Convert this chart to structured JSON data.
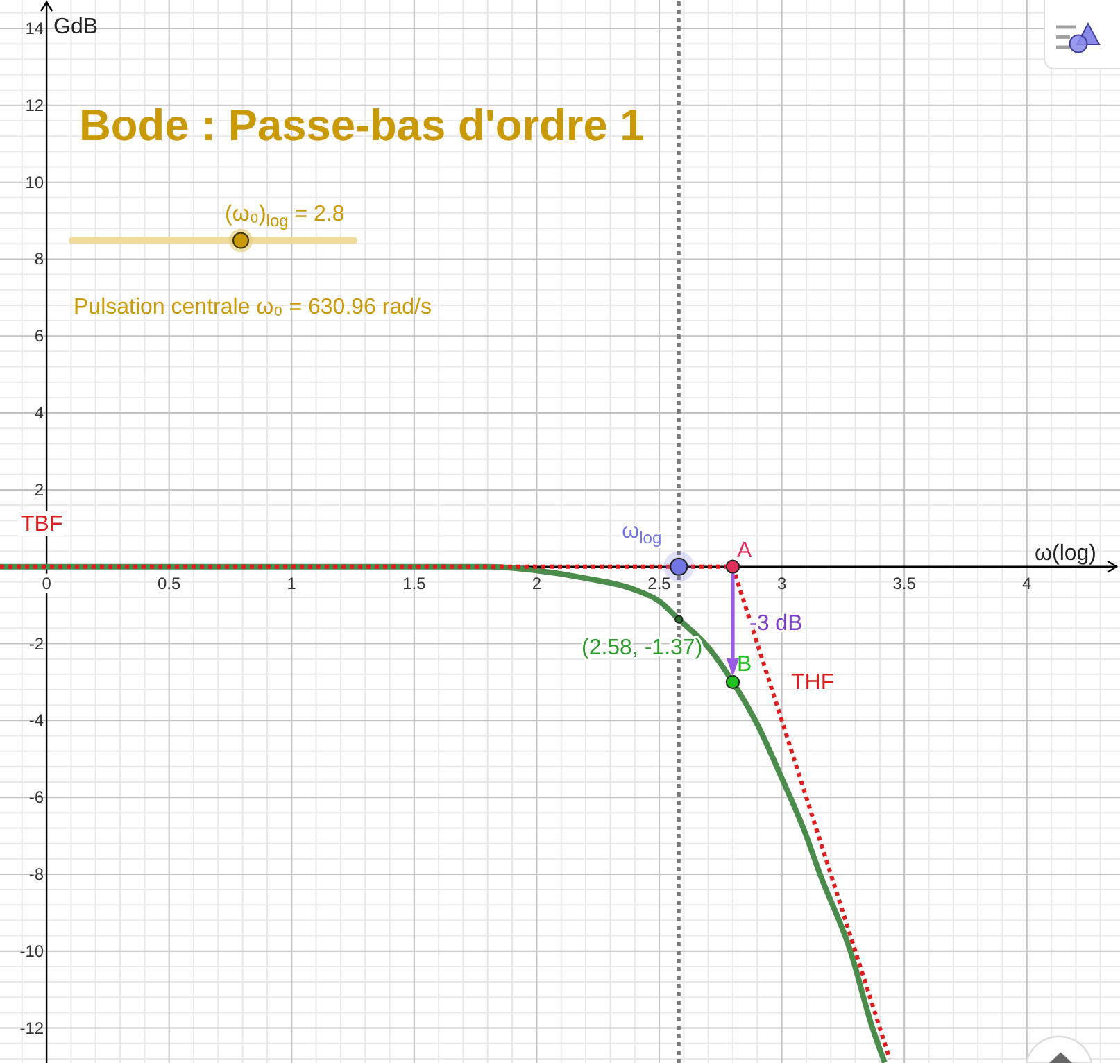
{
  "chart_data": {
    "type": "line",
    "title": "Bode : Passe-bas d'ordre 1",
    "xlabel": "ω(log)",
    "ylabel": "GdB",
    "xlim": [
      -0.19,
      4.38
    ],
    "ylim": [
      -12.91,
      14.74
    ],
    "xticks": [
      {
        "value": -0.1,
        "label": null
      },
      0,
      {
        "value": 0.1,
        "label": null
      },
      {
        "value": 0.2,
        "label": null
      },
      {
        "value": 0.3,
        "label": null
      },
      {
        "value": 0.4,
        "label": null
      },
      0.5,
      {
        "value": 0.6,
        "label": null
      },
      {
        "value": 0.7,
        "label": null
      },
      {
        "value": 0.8,
        "label": null
      },
      {
        "value": 0.9,
        "label": null
      },
      1,
      {
        "value": 1.1,
        "label": null
      },
      {
        "value": 1.2,
        "label": null
      },
      {
        "value": 1.3,
        "label": null
      },
      {
        "value": 1.4,
        "label": null
      },
      1.5,
      {
        "value": 1.6,
        "label": null
      },
      {
        "value": 1.7,
        "label": null
      },
      {
        "value": 1.8,
        "label": null
      },
      {
        "value": 1.9,
        "label": null
      },
      2,
      {
        "value": 2.1,
        "label": null
      },
      {
        "value": 2.2,
        "label": null
      },
      {
        "value": 2.3,
        "label": null
      },
      {
        "value": 2.4,
        "label": null
      },
      2.5,
      {
        "value": 2.6,
        "label": null
      },
      {
        "value": 2.7,
        "label": null
      },
      {
        "value": 2.8,
        "label": null
      },
      {
        "value": 2.9,
        "label": null
      },
      3,
      {
        "value": 3.1,
        "label": null
      },
      {
        "value": 3.2,
        "label": null
      },
      {
        "value": 3.3,
        "label": null
      },
      {
        "value": 3.4,
        "label": null
      },
      3.5,
      {
        "value": 3.6,
        "label": null
      },
      {
        "value": 3.7,
        "label": null
      },
      {
        "value": 3.8,
        "label": null
      },
      {
        "value": 3.9,
        "label": null
      },
      4,
      {
        "value": 4.1,
        "label": null
      },
      {
        "value": 4.2,
        "label": null
      },
      {
        "value": 4.3,
        "label": null
      }
    ],
    "yticks": [
      {
        "value": -12.8,
        "label": null
      },
      {
        "value": -12.4,
        "label": null
      },
      -12,
      {
        "value": -11.6,
        "label": null
      },
      {
        "value": -11.2,
        "label": null
      },
      {
        "value": -10.8,
        "label": null
      },
      {
        "value": -10.4,
        "label": null
      },
      -10,
      {
        "value": -9.6,
        "label": null
      },
      {
        "value": -9.2,
        "label": null
      },
      {
        "value": -8.8,
        "label": null
      },
      {
        "value": -8.4,
        "label": null
      },
      -8,
      {
        "value": -7.6,
        "label": null
      },
      {
        "value": -7.2,
        "label": null
      },
      {
        "value": -6.8,
        "label": null
      },
      {
        "value": -6.4,
        "label": null
      },
      -6,
      {
        "value": -5.6,
        "label": null
      },
      {
        "value": -5.2,
        "label": null
      },
      {
        "value": -4.8,
        "label": null
      },
      {
        "value": -4.4,
        "label": null
      },
      -4,
      {
        "value": -3.6,
        "label": null
      },
      {
        "value": -3.2,
        "label": null
      },
      {
        "value": -2.8,
        "label": null
      },
      {
        "value": -2.4,
        "label": null
      },
      -2,
      {
        "value": -1.6,
        "label": null
      },
      {
        "value": -1.2,
        "label": null
      },
      {
        "value": -0.8,
        "label": null
      },
      {
        "value": -0.4,
        "label": null
      },
      {
        "value": 0.4,
        "label": null
      },
      {
        "value": 0.8,
        "label": null
      },
      {
        "value": 1.2,
        "label": null
      },
      {
        "value": 1.6,
        "label": null
      },
      2,
      {
        "value": 2.4,
        "label": null
      },
      {
        "value": 2.8,
        "label": null
      },
      {
        "value": 3.2,
        "label": null
      },
      {
        "value": 3.6,
        "label": null
      },
      4,
      {
        "value": 4.4,
        "label": null
      },
      {
        "value": 4.8,
        "label": null
      },
      {
        "value": 5.2,
        "label": null
      },
      {
        "value": 5.6,
        "label": null
      },
      6,
      {
        "value": 6.4,
        "label": null
      },
      {
        "value": 6.8,
        "label": null
      },
      {
        "value": 7.2,
        "label": null
      },
      {
        "value": 7.6,
        "label": null
      },
      8,
      {
        "value": 8.4,
        "label": null
      },
      {
        "value": 8.8,
        "label": null
      },
      {
        "value": 9.2,
        "label": null
      },
      {
        "value": 9.6,
        "label": null
      },
      10,
      {
        "value": 10.4,
        "label": null
      },
      {
        "value": 10.8,
        "label": null
      },
      {
        "value": 11.2,
        "label": null
      },
      {
        "value": 11.6,
        "label": null
      },
      12,
      {
        "value": 12.4,
        "label": null
      },
      {
        "value": 12.8,
        "label": null
      },
      {
        "value": 13.2,
        "label": null
      },
      {
        "value": 13.6,
        "label": null
      },
      14,
      {
        "value": 14.4,
        "label": null
      }
    ],
    "grid": true,
    "series": [
      {
        "type": "line",
        "color": "#4b8b4b",
        "line_style": "solid",
        "x": [
          -0.19,
          0,
          0.5,
          1,
          1.5,
          1.8,
          2,
          2.2,
          2.4,
          2.5,
          2.58,
          2.7,
          2.8,
          2.9,
          3,
          3.1,
          3.15,
          3.28,
          3.37,
          3.42
        ],
        "values": [
          0,
          0,
          0,
          0,
          0,
          0,
          -0.1,
          -0.3,
          -0.6,
          -0.9,
          -1.37,
          -2.1,
          -3,
          -4.1,
          -5.5,
          -7,
          -7.9,
          -10,
          -12,
          -12.9
        ]
      },
      {
        "type": "line",
        "name": "TBF",
        "color": "#dc1e1e",
        "line_style": "dotted",
        "x": [
          -0.19,
          2.8
        ],
        "values": [
          0,
          0
        ]
      },
      {
        "type": "line",
        "name": "THF",
        "color": "#dc1e1e",
        "line_style": "dotted",
        "x": [
          2.8,
          3.44
        ],
        "values": [
          0,
          -12.8
        ]
      },
      {
        "type": "scatter",
        "name": "ω$_{log}$",
        "color": "#7276e4",
        "marker": "circle",
        "x": [
          2.58
        ],
        "values": [
          0
        ]
      },
      {
        "type": "scatter",
        "name": "A",
        "color": "#e0305a",
        "marker": "circle",
        "x": [
          2.8
        ],
        "values": [
          0
        ]
      },
      {
        "type": "scatter",
        "name": "B",
        "color": "#1fc01f",
        "marker": "circle",
        "x": [
          2.8
        ],
        "values": [
          -3
        ]
      },
      {
        "type": "scatter",
        "color": "#2a6e2a",
        "marker": "circle",
        "x": [
          2.58
        ],
        "values": [
          -1.37
        ]
      }
    ],
    "ref_lines": [
      {
        "axis": "x",
        "value": 2.58,
        "color": "#7a7a7a",
        "line_style": "dotted"
      }
    ],
    "annotations": [
      "(ω₀)$_{log}$ = 2.8",
      "Pulsation centrale ω₀ = 630.96 rad/s",
      {
        "text": "(2.58, -1.37)",
        "x": 2.58,
        "y": -1.37
      },
      "-3 dB"
    ]
  }
}
